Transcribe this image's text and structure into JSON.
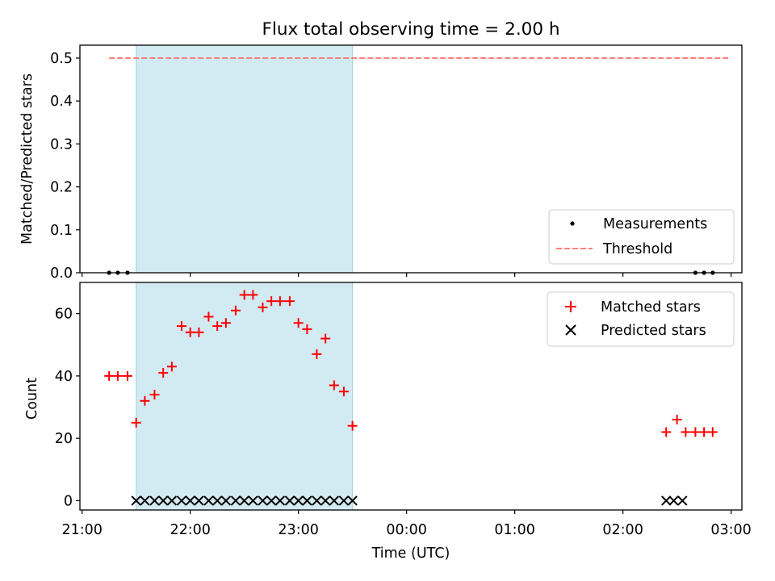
{
  "chart_data": {
    "type": "scatter",
    "title": "Flux total observing time = 2.00 h",
    "xlabel": "Time (UTC)",
    "x_ticks": [
      "21:00",
      "22:00",
      "23:00",
      "00:00",
      "01:00",
      "02:00",
      "03:00"
    ],
    "x_range_hours": [
      20.98,
      27.1
    ],
    "observing_window_hours": [
      21.5,
      23.5
    ],
    "shade_color": "#add8e6",
    "top_panel": {
      "ylabel": "Matched/Predicted stars",
      "ylim": [
        0,
        0.53
      ],
      "yticks": [
        "0.0",
        "0.1",
        "0.2",
        "0.3",
        "0.4",
        "0.5"
      ],
      "legend_position": "lower right",
      "measurements": {
        "name": "Measurements",
        "color": "#000000",
        "x_hours": [
          21.25,
          21.33,
          21.42,
          26.67,
          26.75,
          26.83
        ],
        "values": [
          0,
          0,
          0,
          0,
          0,
          0
        ]
      },
      "threshold": {
        "name": "Threshold",
        "color": "#ff7f7f",
        "value": 0.5,
        "x_start": 21.25,
        "x_end": 27.0
      }
    },
    "bottom_panel": {
      "ylabel": "Count",
      "ylim": [
        -3,
        70
      ],
      "yticks": [
        "0",
        "20",
        "40",
        "60"
      ],
      "legend_position": "upper right",
      "matched": {
        "name": "Matched stars",
        "color": "#ff0000",
        "x_hours": [
          21.25,
          21.33,
          21.42,
          21.5,
          21.58,
          21.67,
          21.75,
          21.83,
          21.92,
          22.0,
          22.08,
          22.17,
          22.25,
          22.33,
          22.42,
          22.5,
          22.58,
          22.67,
          22.75,
          22.83,
          22.92,
          23.0,
          23.08,
          23.17,
          23.25,
          23.33,
          23.42,
          23.5,
          26.4,
          26.5,
          26.58,
          26.67,
          26.75,
          26.83
        ],
        "values": [
          40,
          40,
          40,
          25,
          32,
          34,
          41,
          43,
          56,
          54,
          54,
          59,
          56,
          57,
          61,
          66,
          66,
          62,
          64,
          64,
          64,
          57,
          55,
          47,
          52,
          37,
          35,
          24,
          22,
          26,
          22,
          22,
          22,
          22
        ]
      },
      "predicted": {
        "name": "Predicted stars",
        "color": "#000000",
        "x_hours": [
          21.5,
          21.58,
          21.67,
          21.75,
          21.83,
          21.92,
          22.0,
          22.08,
          22.17,
          22.25,
          22.33,
          22.42,
          22.5,
          22.58,
          22.67,
          22.75,
          22.83,
          22.92,
          23.0,
          23.08,
          23.17,
          23.25,
          23.33,
          23.42,
          23.5,
          26.4,
          26.47,
          26.55
        ],
        "values": [
          0,
          0,
          0,
          0,
          0,
          0,
          0,
          0,
          0,
          0,
          0,
          0,
          0,
          0,
          0,
          0,
          0,
          0,
          0,
          0,
          0,
          0,
          0,
          0,
          0,
          0,
          0,
          0
        ]
      }
    }
  }
}
